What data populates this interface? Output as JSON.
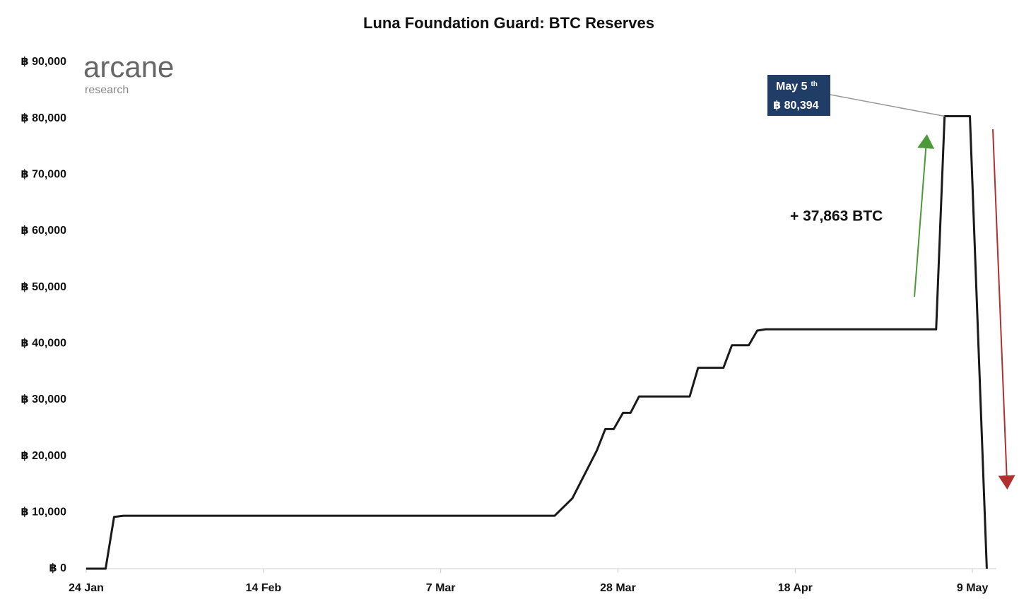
{
  "chart_data": {
    "type": "line",
    "title": "Luna Foundation Guard: BTC Reserves",
    "logo": {
      "name": "arcane",
      "subname": "research"
    },
    "x": [
      0,
      2.3,
      3.3,
      4.4,
      55.5,
      57.6,
      60.5,
      61.5,
      62.5,
      63.6,
      64.5,
      65.5,
      71.5,
      72.5,
      75.5,
      76.5,
      78.5,
      79.5,
      80.5,
      100.7,
      101.7,
      104.7,
      106.7
    ],
    "series": [
      {
        "name": "BTC Reserves",
        "color": "#1a1a1a",
        "values": [
          0,
          0,
          9200,
          9400,
          9400,
          12500,
          21000,
          24800,
          24800,
          27700,
          27700,
          30600,
          30600,
          35700,
          35700,
          39700,
          39700,
          42300,
          42531,
          42531,
          80394,
          80394,
          0
        ]
      }
    ],
    "xlim": [
      0,
      107
    ],
    "xticks": [
      {
        "value": 0,
        "label": "24 Jan"
      },
      {
        "value": 21,
        "label": "14 Feb"
      },
      {
        "value": 42,
        "label": "7 Mar"
      },
      {
        "value": 63,
        "label": "28 Mar"
      },
      {
        "value": 84,
        "label": "18 Apr"
      },
      {
        "value": 105,
        "label": "9 May"
      }
    ],
    "ylim": [
      0,
      90000
    ],
    "yticks": [
      {
        "value": 0,
        "label": "฿ 0"
      },
      {
        "value": 10000,
        "label": "฿ 10,000"
      },
      {
        "value": 20000,
        "label": "฿ 20,000"
      },
      {
        "value": 30000,
        "label": "฿ 30,000"
      },
      {
        "value": 40000,
        "label": "฿ 40,000"
      },
      {
        "value": 50000,
        "label": "฿ 50,000"
      },
      {
        "value": 60000,
        "label": "฿ 60,000"
      },
      {
        "value": 70000,
        "label": "฿ 70,000"
      },
      {
        "value": 80000,
        "label": "฿ 80,000"
      },
      {
        "value": 90000,
        "label": "฿ 90,000"
      }
    ],
    "grid": false,
    "annotations": [
      {
        "date": "May 5",
        "suffix": "th",
        "value": 80394,
        "label": "฿ 80,394"
      },
      {
        "text": "+ 37,863 BTC"
      }
    ]
  }
}
